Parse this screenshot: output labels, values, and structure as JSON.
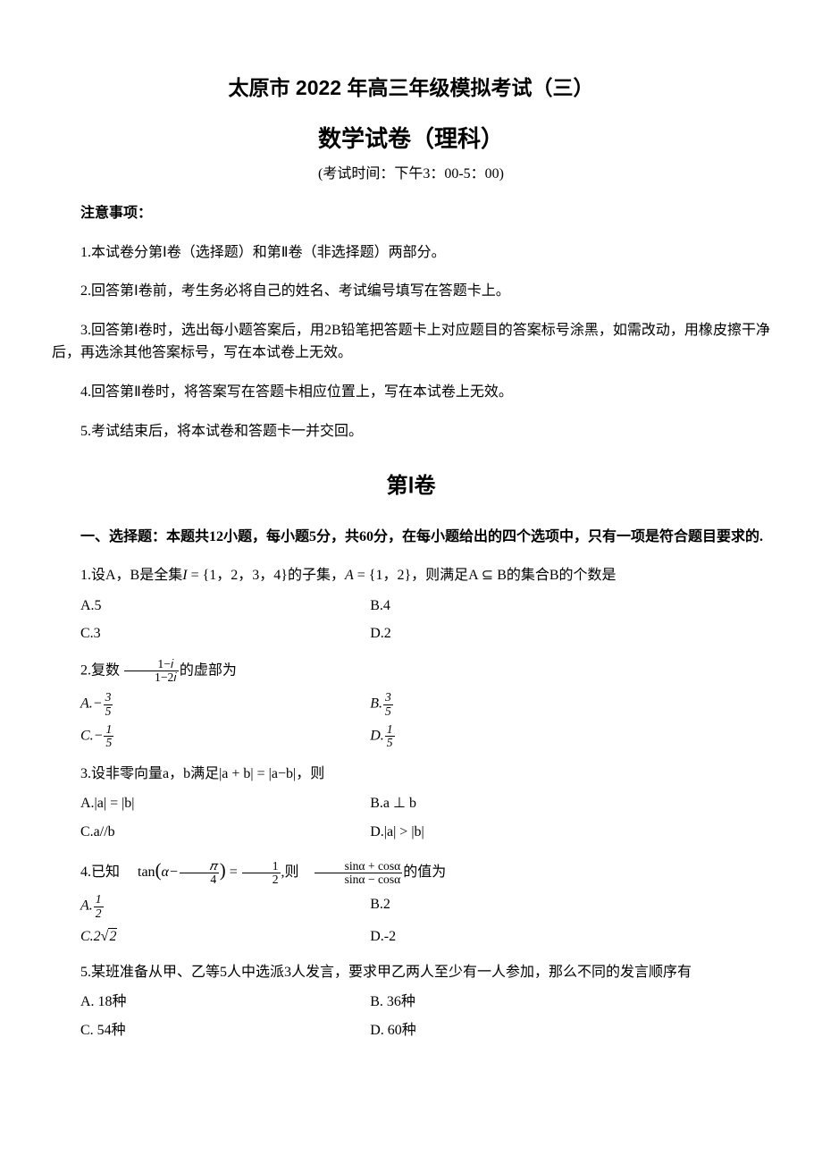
{
  "header": {
    "title_main": "太原市 2022 年高三年级模拟考试（三）",
    "title_sub": "数学试卷（理科）",
    "exam_time": "(考试时间：下午3：00-5：00)"
  },
  "notice": {
    "heading": "注意事项：",
    "items": [
      "1.本试卷分第Ⅰ卷（选择题）和第Ⅱ卷（非选择题）两部分。",
      "2.回答第Ⅰ卷前，考生务必将自己的姓名、考试编号填写在答题卡上。",
      "3.回答第Ⅰ卷时，选出每小题答案后，用2B铅笔把答题卡上对应题目的答案标号涂黑，如需改动，用橡皮擦干净后，再选涂其他答案标号，写在本试卷上无效。",
      "4.回答第Ⅱ卷时，将答案写在答题卡相应位置上，写在本试卷上无效。",
      "5.考试结束后，将本试卷和答题卡一并交回。"
    ]
  },
  "section1": {
    "title": "第Ⅰ卷",
    "intro": "一、选择题：本题共12小题，每小题5分，共60分，在每小题给出的四个选项中，只有一项是符合题目要求的."
  },
  "questions": [
    {
      "prompt_pre": "1.设A，B是全集",
      "prompt_i": "I",
      "prompt_mid": " = {1，2，3，4}的子集，",
      "prompt_a": "A",
      "prompt_post": " = {1，2}，则满足A ⊆ B的集合B的个数是",
      "options": {
        "A": "A.5",
        "B": "B.4",
        "C": "C.3",
        "D": "D.2"
      }
    },
    {
      "prompt": "2.复数 ",
      "frac_num": "1−𝑖",
      "frac_den": "1−2𝑖",
      "prompt_post": "的虚部为",
      "options": {
        "A_label": "A.",
        "A_sign": "−",
        "A_num": "3",
        "A_den": "5",
        "B_label": "B.",
        "B_num": "3",
        "B_den": "5",
        "C_label": "C.",
        "C_sign": "−",
        "C_num": "1",
        "C_den": "5",
        "D_label": "D.",
        "D_num": "1",
        "D_den": "5"
      }
    },
    {
      "prompt": "3.设非零向量a，b满足|a + b| = |a−b|，则",
      "options": {
        "A": "A.|a| = |b|",
        "B": "B.a ⊥ b",
        "C": "C.a//b",
        "D": "D.|a| > |b|"
      }
    },
    {
      "prompt_pre": "4.已知 　tan",
      "paren_open": "(",
      "alpha": "α−",
      "pi_num": "𝜋",
      "pi_den": "4",
      "paren_close": ")",
      "eq": " = ",
      "half_num": "1",
      "half_den": "2",
      "comma": ",则　",
      "top_expr": "sinα + cosα",
      "bot_expr": "sinα − cosα",
      "prompt_post": "的值为",
      "options": {
        "A_label": "A.",
        "A_num": "1",
        "A_den": "2",
        "B": "B.2",
        "C_label": "C.",
        "C_val": "2",
        "C_root": "2",
        "D": "D.-2"
      }
    },
    {
      "prompt": "5.某班准备从甲、乙等5人中选派3人发言，要求甲乙两人至少有一人参加，那么不同的发言顺序有",
      "options": {
        "A": "A. 18种",
        "B": "B. 36种",
        "C": "C. 54种",
        "D": "D. 60种"
      }
    }
  ]
}
